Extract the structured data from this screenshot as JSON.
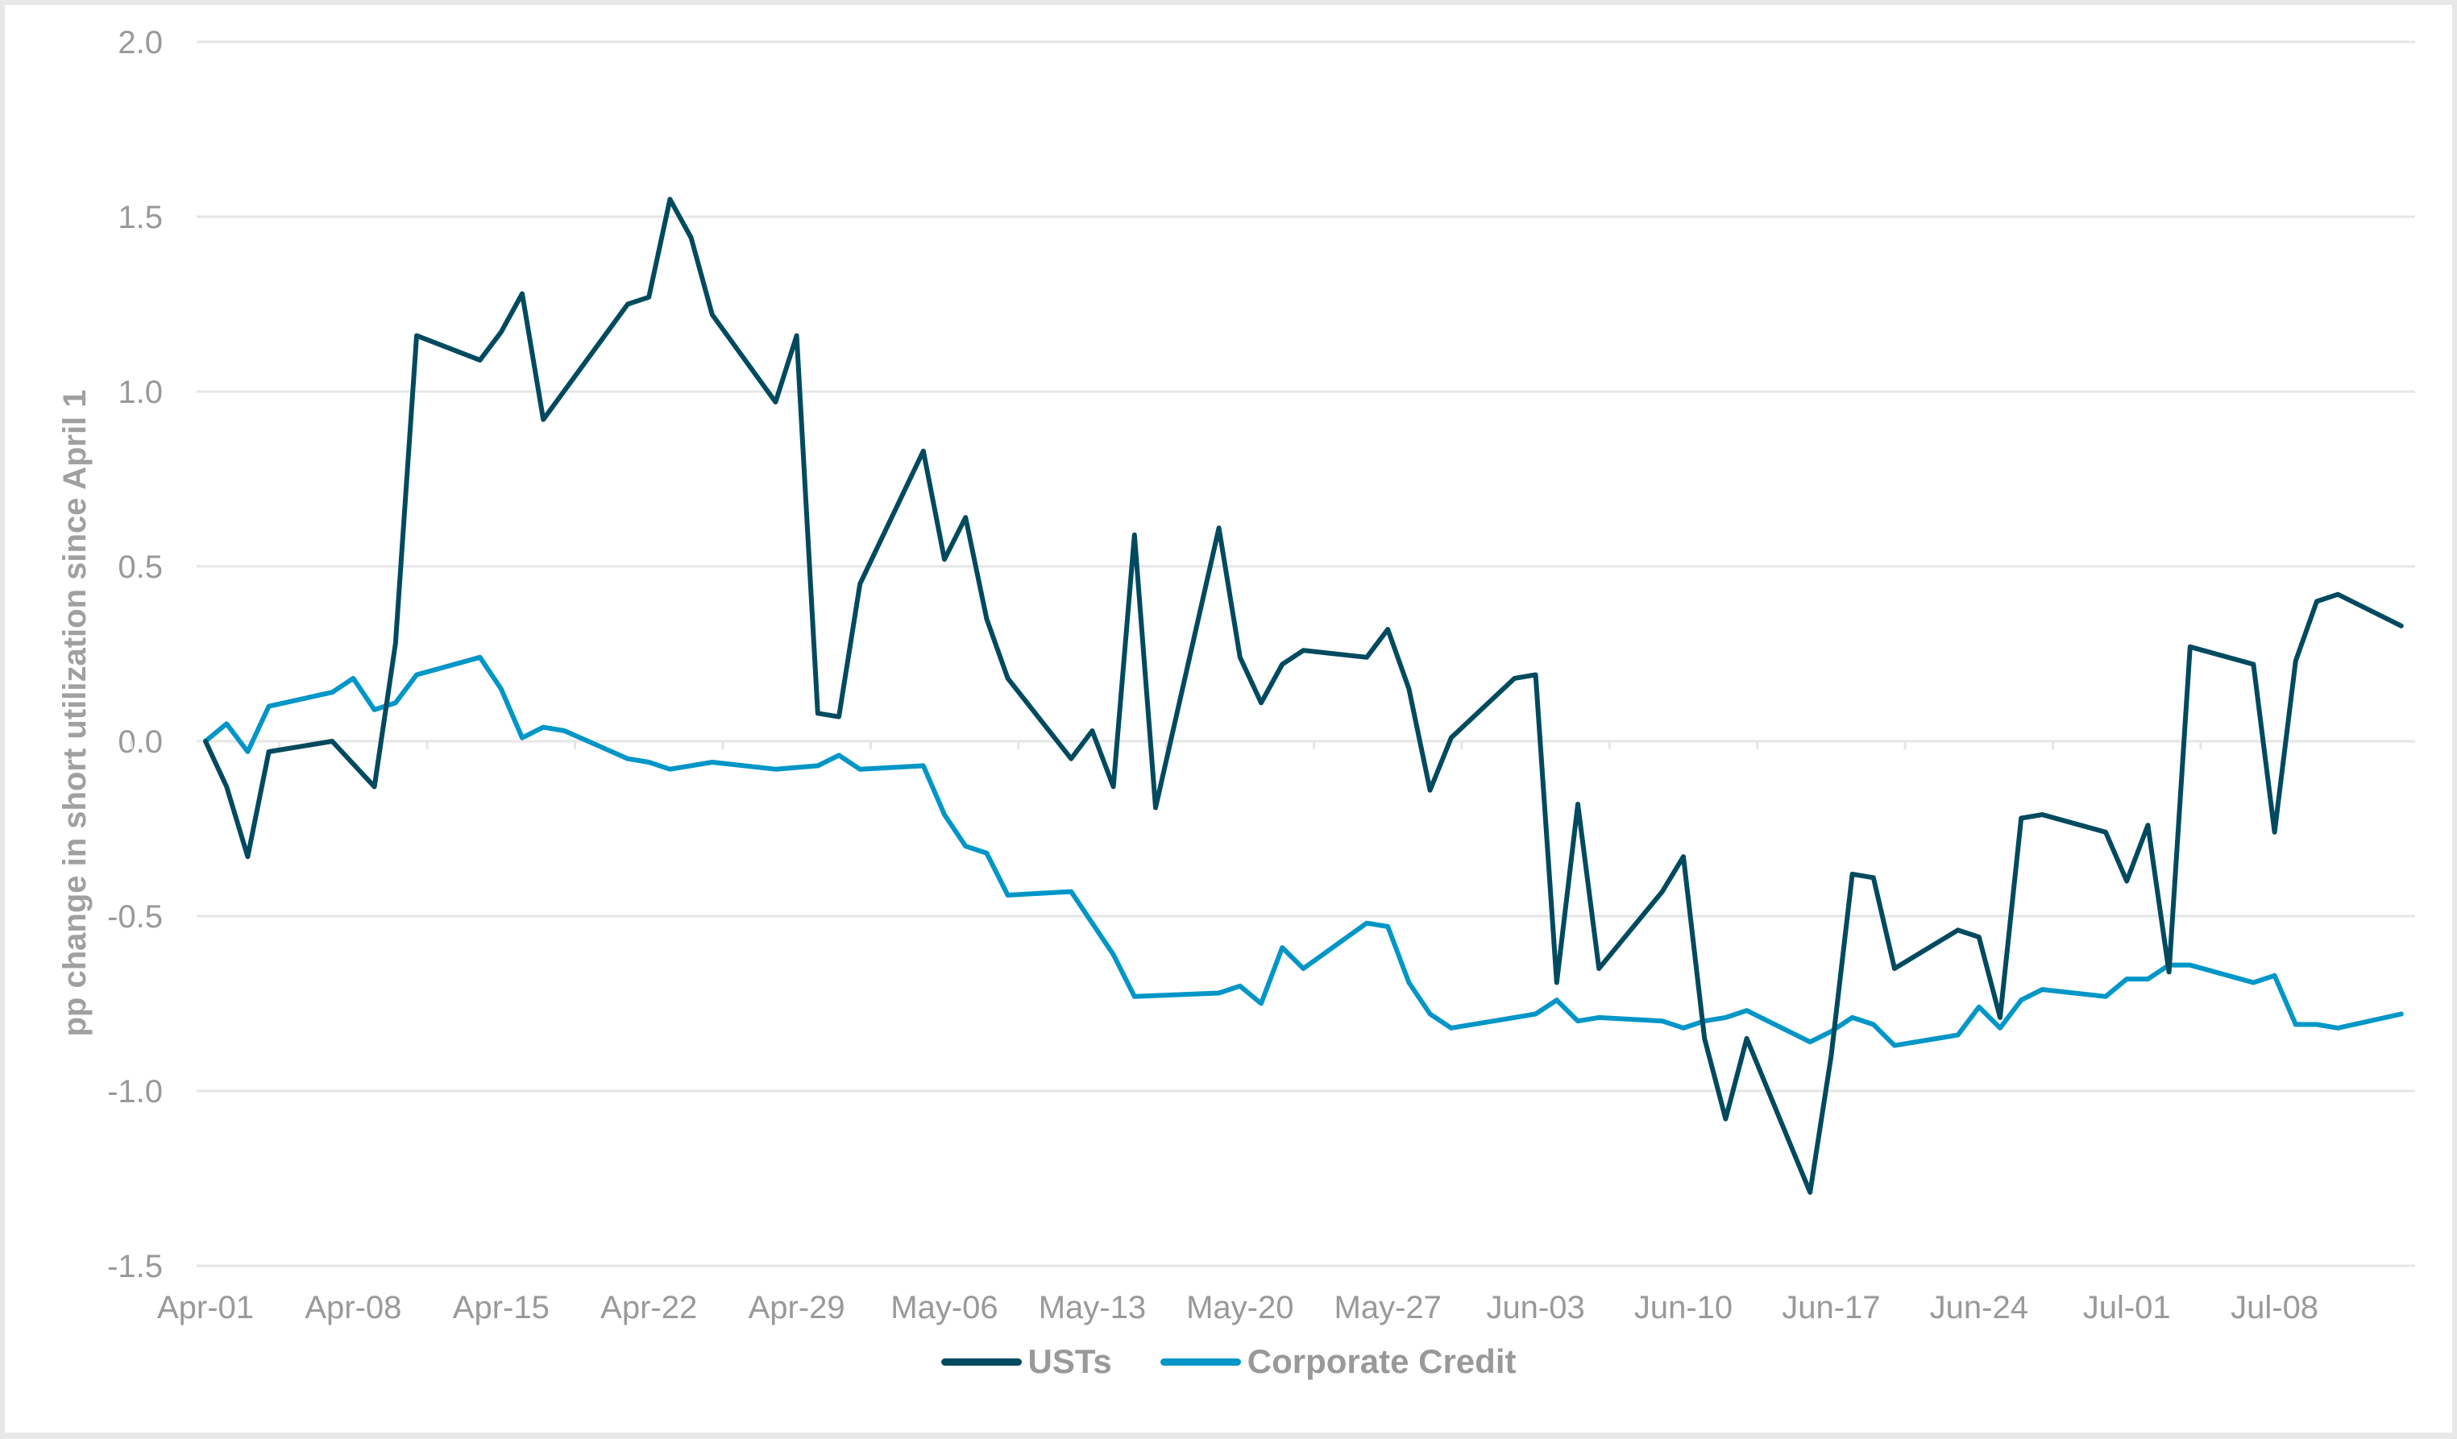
{
  "chart_data": {
    "type": "line",
    "title": "",
    "xlabel": "",
    "ylabel": "pp change in short utilization since April 1",
    "ylim": [
      -1.5,
      2.0
    ],
    "yticks": [
      "2.0",
      "1.5",
      "1.0",
      "0.5",
      "0.0",
      "-0.5",
      "-1.0",
      "-1.5"
    ],
    "ytick_values": [
      2.0,
      1.5,
      1.0,
      0.5,
      0.0,
      -0.5,
      -1.0,
      -1.5
    ],
    "xticks": [
      "Apr-01",
      "Apr-08",
      "Apr-15",
      "Apr-22",
      "Apr-29",
      "May-06",
      "May-13",
      "May-20",
      "May-27",
      "Jun-03",
      "Jun-10",
      "Jun-17",
      "Jun-24",
      "Jul-01",
      "Jul-08"
    ],
    "x_day_range": [
      0,
      104
    ],
    "grid": "horizontal",
    "legend_position": "bottom",
    "series": [
      {
        "name": "USTs",
        "color": "#004a5f",
        "x_days": [
          0,
          1,
          2,
          3,
          6,
          8,
          9,
          10,
          13,
          14,
          15,
          16,
          20,
          21,
          22,
          23,
          24,
          27,
          28,
          29,
          30,
          31,
          34,
          35,
          36,
          37,
          38,
          41,
          42,
          43,
          44,
          45,
          48,
          49,
          50,
          51,
          52,
          55,
          56,
          57,
          58,
          59,
          62,
          63,
          64,
          65,
          66,
          69,
          70,
          71,
          72,
          73,
          76,
          77,
          78,
          79,
          80,
          83,
          84,
          85,
          86,
          87,
          90,
          91,
          92,
          93,
          94,
          97,
          98,
          99,
          100,
          101,
          104
        ],
        "values": [
          0.0,
          -0.13,
          -0.33,
          -0.03,
          0.0,
          -0.13,
          0.28,
          1.16,
          1.09,
          1.17,
          1.28,
          0.92,
          1.25,
          1.27,
          1.55,
          1.44,
          1.22,
          0.97,
          1.16,
          0.08,
          0.07,
          0.45,
          0.83,
          0.52,
          0.64,
          0.35,
          0.18,
          -0.05,
          0.03,
          -0.13,
          0.59,
          -0.19,
          0.61,
          0.24,
          0.11,
          0.22,
          0.26,
          0.24,
          0.32,
          0.15,
          -0.14,
          0.01,
          0.18,
          0.19,
          -0.69,
          -0.18,
          -0.65,
          -0.43,
          -0.33,
          -0.85,
          -1.08,
          -0.85,
          -1.29,
          -0.9,
          -0.38,
          -0.39,
          -0.65,
          -0.54,
          -0.56,
          -0.79,
          -0.22,
          -0.21,
          -0.26,
          -0.4,
          -0.24,
          -0.66,
          0.27,
          0.22,
          -0.26,
          0.23,
          0.4,
          0.42,
          0.33
        ]
      },
      {
        "name": "Corporate Credit",
        "color": "#0096c7",
        "x_days": [
          0,
          1,
          2,
          3,
          6,
          7,
          8,
          9,
          10,
          13,
          14,
          15,
          16,
          17,
          20,
          21,
          22,
          24,
          27,
          29,
          30,
          31,
          34,
          35,
          36,
          37,
          38,
          41,
          42,
          43,
          44,
          48,
          49,
          50,
          51,
          52,
          55,
          56,
          57,
          58,
          59,
          62,
          63,
          64,
          65,
          66,
          69,
          70,
          71,
          72,
          73,
          76,
          77,
          78,
          79,
          80,
          83,
          84,
          85,
          86,
          87,
          90,
          91,
          92,
          93,
          94,
          97,
          98,
          99,
          100,
          101,
          104
        ],
        "values": [
          0.0,
          0.05,
          -0.03,
          0.1,
          0.14,
          0.18,
          0.09,
          0.11,
          0.19,
          0.24,
          0.15,
          0.01,
          0.04,
          0.03,
          -0.05,
          -0.06,
          -0.08,
          -0.06,
          -0.08,
          -0.07,
          -0.04,
          -0.08,
          -0.07,
          -0.21,
          -0.3,
          -0.32,
          -0.44,
          -0.43,
          -0.52,
          -0.61,
          -0.73,
          -0.72,
          -0.7,
          -0.75,
          -0.59,
          -0.65,
          -0.52,
          -0.53,
          -0.69,
          -0.78,
          -0.82,
          -0.79,
          -0.78,
          -0.74,
          -0.8,
          -0.79,
          -0.8,
          -0.82,
          -0.8,
          -0.79,
          -0.77,
          -0.86,
          -0.83,
          -0.79,
          -0.81,
          -0.87,
          -0.84,
          -0.76,
          -0.82,
          -0.74,
          -0.71,
          -0.73,
          -0.68,
          -0.68,
          -0.64,
          -0.64,
          -0.69,
          -0.67,
          -0.81,
          -0.81,
          -0.82,
          -0.78
        ]
      }
    ]
  },
  "legend": {
    "items": [
      {
        "label": "USTs",
        "color": "#004a5f"
      },
      {
        "label": "Corporate Credit",
        "color": "#0096c7"
      }
    ]
  },
  "colors": {
    "gridline": "#e6e6e6",
    "tick_text": "#999999",
    "axis_title": "#a0a0a0"
  }
}
